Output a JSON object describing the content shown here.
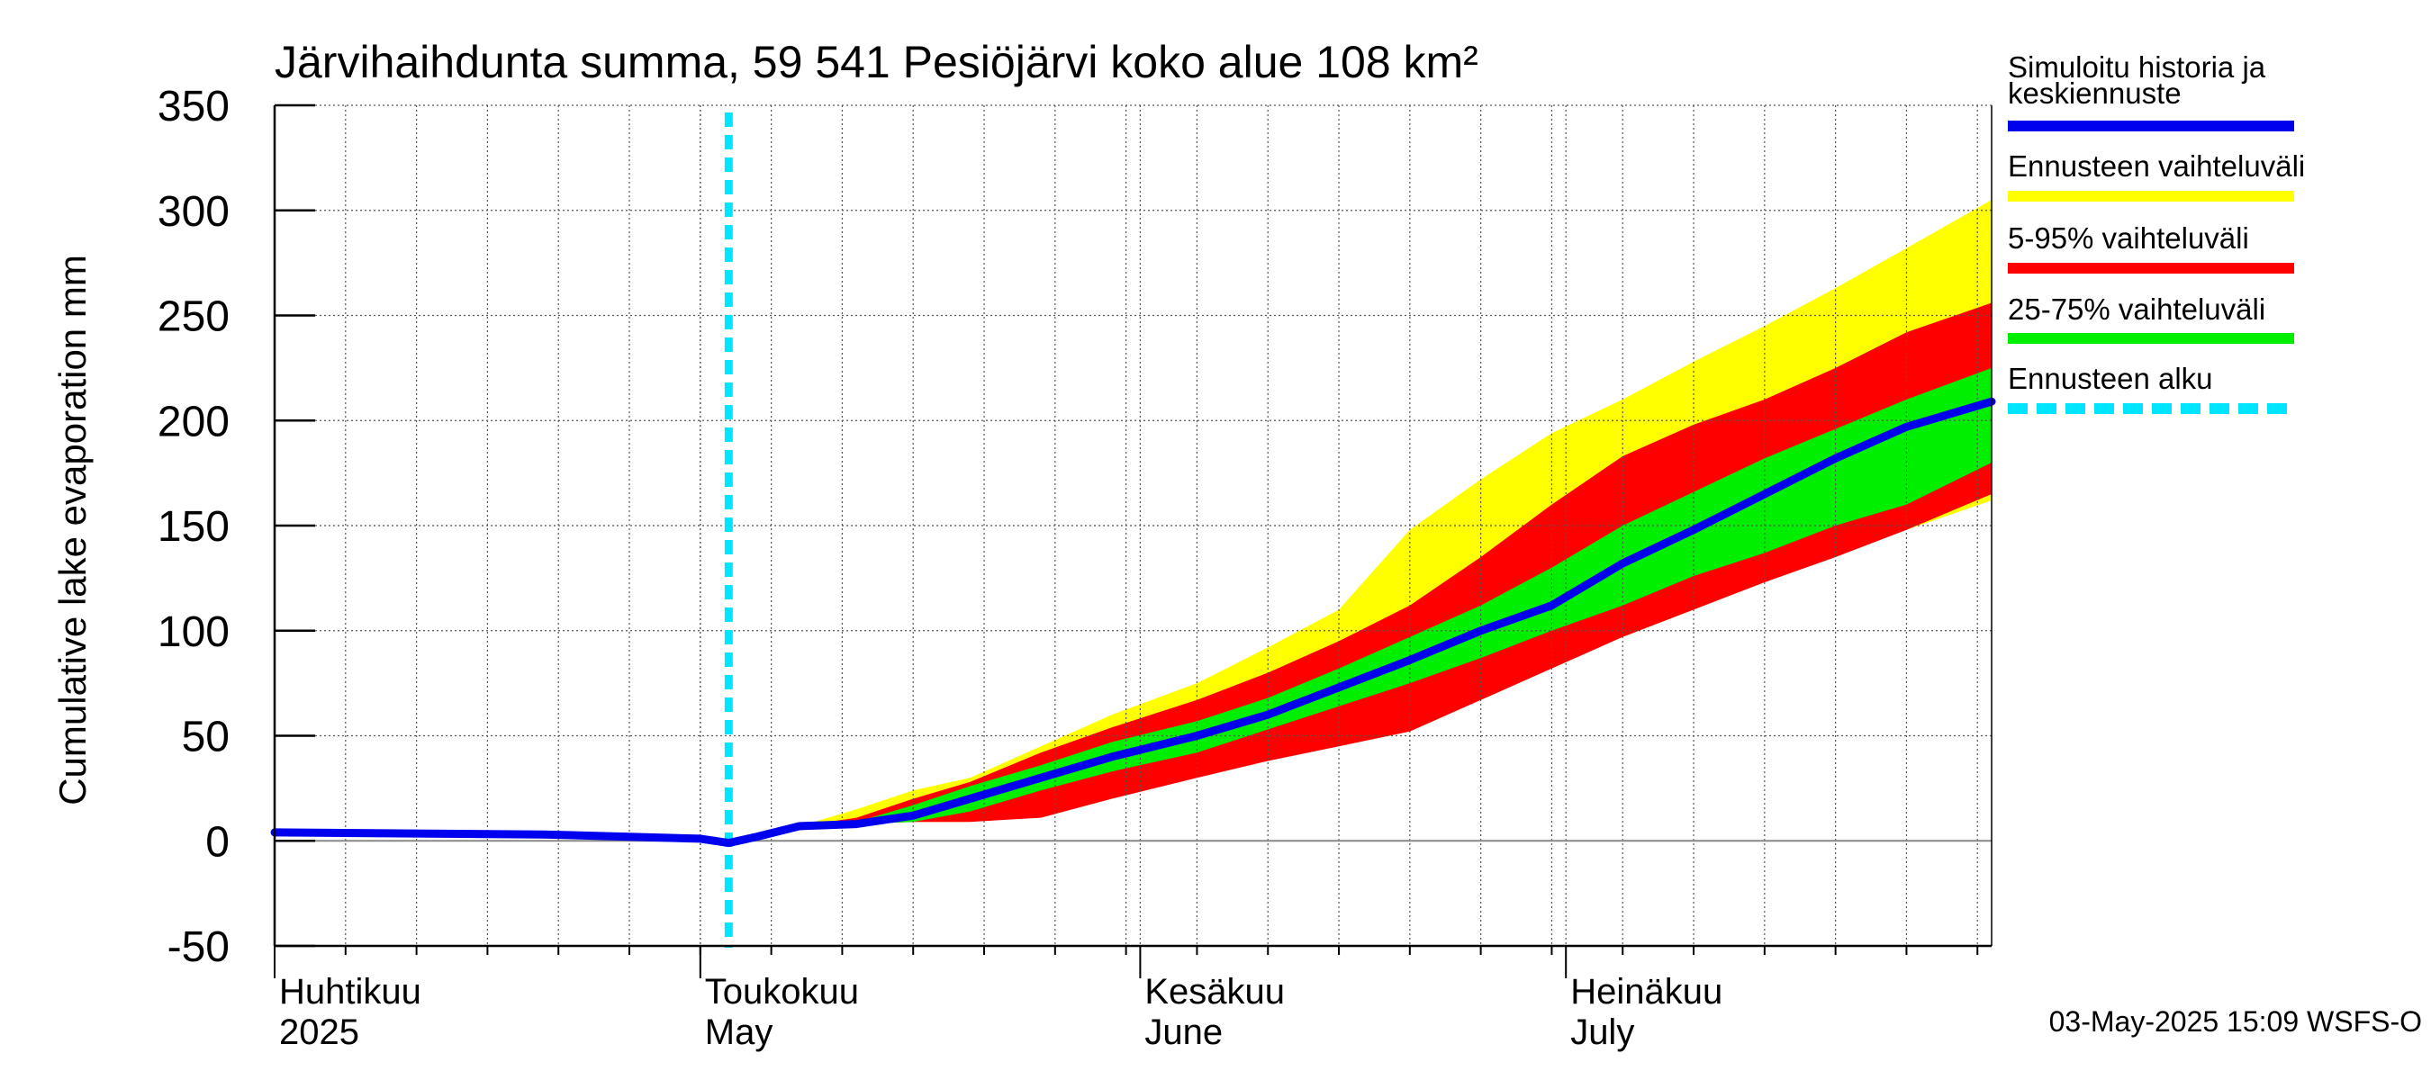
{
  "chart_data": {
    "type": "area",
    "title": "Järvihaihdunta summa, 59 541 Pesiöjärvi koko alue 108 km²",
    "ylabel": "Cumulative lake evaporation   mm",
    "ylim": [
      -50,
      350
    ],
    "yticks": [
      "350",
      "300",
      "250",
      "200",
      "150",
      "100",
      "50",
      "0",
      "-50"
    ],
    "yticks_values": [
      350,
      300,
      250,
      200,
      150,
      100,
      50,
      0,
      -50
    ],
    "xlim": [
      "2025-04-01",
      "2025-07-31"
    ],
    "forecast_start": "2025-05-03",
    "grid": true,
    "legend_position": "right",
    "x_month_labels": [
      {
        "fi": "Huhtikuu",
        "en": "2025",
        "date": "2025-04-01"
      },
      {
        "fi": "Toukokuu",
        "en": "May",
        "date": "2025-05-01"
      },
      {
        "fi": "Kesäkuu",
        "en": "June",
        "date": "2025-06-01"
      },
      {
        "fi": "Heinäkuu",
        "en": "July",
        "date": "2025-07-01"
      }
    ],
    "legend": [
      {
        "label_lines": [
          "Simuloitu historia ja",
          "keskiennuste"
        ],
        "color": "#0000ee",
        "style": "solid"
      },
      {
        "label_lines": [
          "Ennusteen vaihteluväli"
        ],
        "color": "#ffff00",
        "style": "solid"
      },
      {
        "label_lines": [
          "5-95% vaihteluväli"
        ],
        "color": "#ff0000",
        "style": "solid"
      },
      {
        "label_lines": [
          "25-75% vaihteluväli"
        ],
        "color": "#00ee00",
        "style": "solid"
      },
      {
        "label_lines": [
          "Ennusteen alku"
        ],
        "color": "#00e5ff",
        "style": "dashed"
      }
    ],
    "x": [
      "2025-04-01",
      "2025-04-20",
      "2025-05-01",
      "2025-05-03",
      "2025-05-05",
      "2025-05-08",
      "2025-05-12",
      "2025-05-16",
      "2025-05-20",
      "2025-05-25",
      "2025-05-30",
      "2025-06-05",
      "2025-06-10",
      "2025-06-15",
      "2025-06-20",
      "2025-06-25",
      "2025-06-30",
      "2025-07-05",
      "2025-07-10",
      "2025-07-15",
      "2025-07-20",
      "2025-07-25",
      "2025-07-31"
    ],
    "series": [
      {
        "name": "Ennusteen vaihteluväli",
        "kind": "band",
        "color": "#ffff00",
        "low": [
          4,
          3,
          1,
          -1,
          2,
          7,
          8,
          9,
          9,
          13,
          27,
          35,
          40,
          50,
          55,
          75,
          85,
          97,
          110,
          125,
          137,
          148,
          162
        ],
        "high": [
          4,
          3,
          1,
          -1,
          2,
          7,
          15,
          24,
          30,
          45,
          60,
          75,
          92,
          110,
          148,
          172,
          194,
          210,
          228,
          245,
          263,
          282,
          305
        ]
      },
      {
        "name": "5-95% vaihteluväli",
        "kind": "band",
        "color": "#ff0000",
        "low": [
          4,
          3,
          1,
          -1,
          2,
          7,
          8,
          9,
          9,
          11,
          20,
          30,
          38,
          45,
          52,
          67,
          82,
          97,
          110,
          123,
          135,
          148,
          165
        ],
        "high": [
          4,
          3,
          1,
          -1,
          2,
          7,
          11,
          20,
          28,
          42,
          54,
          67,
          80,
          95,
          112,
          135,
          160,
          183,
          198,
          210,
          225,
          242,
          256
        ]
      },
      {
        "name": "25-75% vaihteluväli",
        "kind": "band",
        "color": "#00ee00",
        "low": [
          4,
          3,
          1,
          -1,
          2,
          7,
          8,
          9,
          14,
          24,
          33,
          42,
          53,
          64,
          75,
          87,
          100,
          112,
          126,
          137,
          150,
          160,
          180
        ],
        "high": [
          4,
          3,
          1,
          -1,
          2,
          7,
          9,
          17,
          26,
          36,
          47,
          57,
          68,
          82,
          97,
          112,
          130,
          150,
          166,
          182,
          196,
          210,
          225
        ]
      },
      {
        "name": "Simuloitu historia ja keskiennuste",
        "kind": "line",
        "color": "#0000ee",
        "values": [
          4,
          3,
          1,
          -1,
          2,
          7,
          8,
          12,
          20,
          30,
          40,
          50,
          60,
          73,
          86,
          100,
          112,
          132,
          148,
          165,
          182,
          197,
          209
        ]
      }
    ]
  },
  "footer": {
    "timestamp": "03-May-2025 15:09 WSFS-O"
  }
}
